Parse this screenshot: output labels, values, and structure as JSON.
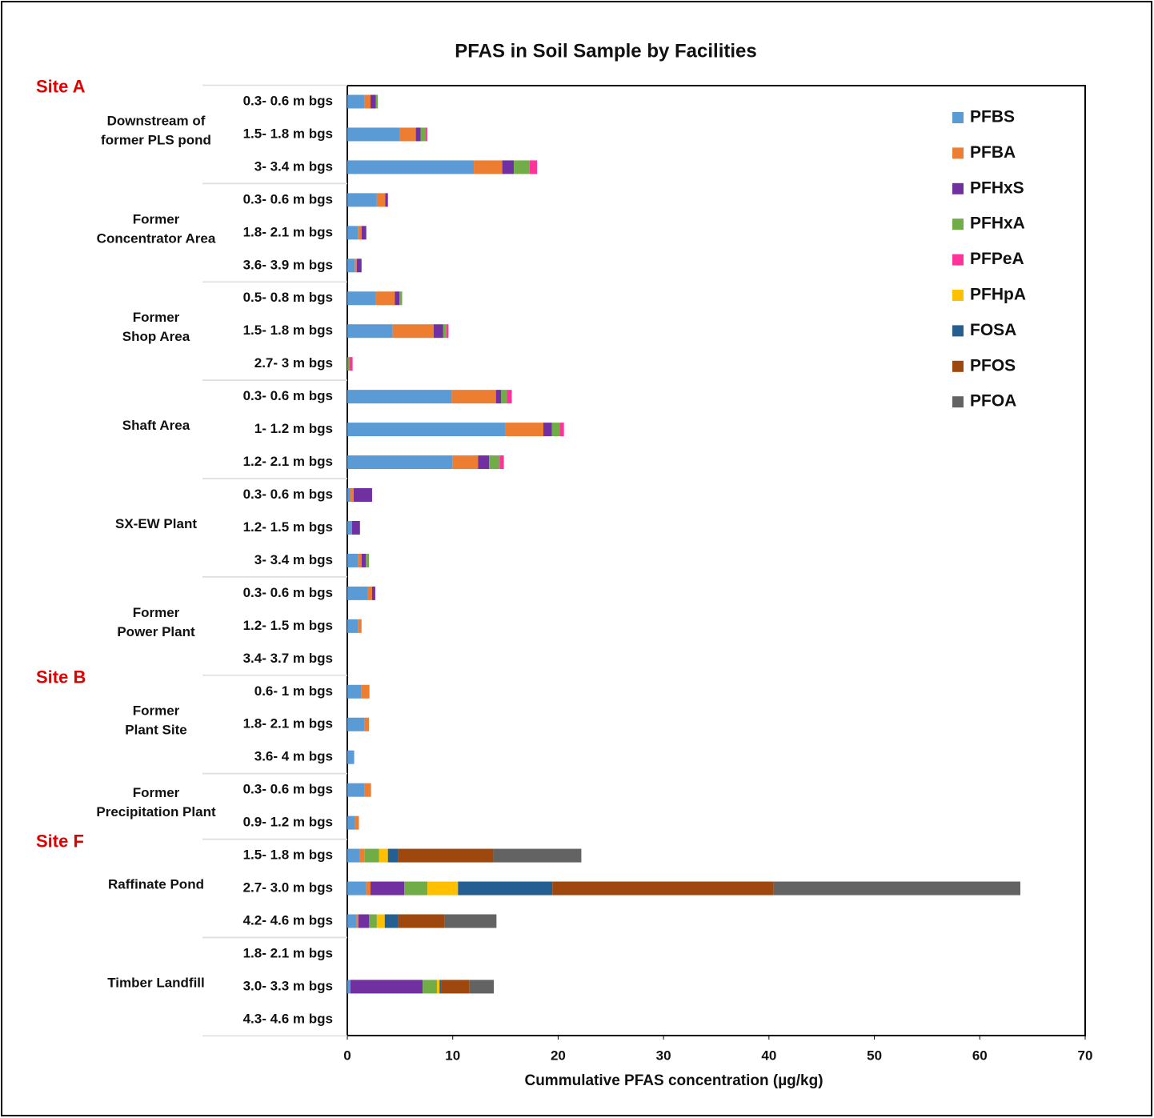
{
  "chart_data": {
    "type": "bar",
    "orientation": "horizontal",
    "stacked": true,
    "title": "PFAS in Soil Sample by Facilities",
    "x_label": "Cummulative PFAS concentration (µg/kg)",
    "xlim": [
      0,
      70
    ],
    "xticks": [
      0,
      10,
      20,
      30,
      40,
      50,
      60,
      70
    ],
    "legend": "top-right",
    "sites": [
      {
        "name": "Site A",
        "groups": [
          {
            "label": [
              "Downstream of",
              "former PLS pond"
            ],
            "categories": [
              "0.3- 0.6 m bgs",
              "1.5- 1.8 m bgs",
              "3- 3.4 m bgs"
            ]
          },
          {
            "label": [
              "Former",
              "Concentrator Area"
            ],
            "categories": [
              "0.3- 0.6 m bgs",
              "1.8- 2.1 m bgs",
              "3.6- 3.9 m bgs"
            ]
          },
          {
            "label": [
              "Former",
              "Shop Area"
            ],
            "categories": [
              "0.5- 0.8 m bgs",
              "1.5- 1.8 m bgs",
              "2.7- 3 m bgs"
            ]
          },
          {
            "label": [
              "Shaft Area"
            ],
            "categories": [
              "0.3- 0.6 m bgs",
              "1- 1.2 m bgs",
              "1.2- 2.1 m bgs"
            ]
          },
          {
            "label": [
              "SX-EW Plant"
            ],
            "categories": [
              "0.3- 0.6 m bgs",
              "1.2- 1.5 m bgs",
              "3- 3.4 m bgs"
            ]
          },
          {
            "label": [
              "Former",
              "Power Plant"
            ],
            "categories": [
              "0.3- 0.6 m bgs",
              "1.2- 1.5 m bgs",
              "3.4- 3.7 m bgs"
            ]
          }
        ]
      },
      {
        "name": "Site B",
        "groups": [
          {
            "label": [
              "Former",
              "Plant Site"
            ],
            "categories": [
              "0.6- 1 m bgs",
              "1.8- 2.1 m bgs",
              "3.6- 4 m bgs"
            ]
          },
          {
            "label": [
              "Former",
              "Precipitation Plant"
            ],
            "categories": [
              "0.3- 0.6 m bgs",
              "0.9- 1.2 m bgs"
            ]
          }
        ]
      },
      {
        "name": "Site F",
        "groups": [
          {
            "label": [
              "Raffinate Pond"
            ],
            "categories": [
              "1.5- 1.8 m bgs",
              "2.7- 3.0 m bgs",
              "4.2- 4.6 m bgs"
            ]
          },
          {
            "label": [
              "Timber Landfill"
            ],
            "categories": [
              "1.8- 2.1 m bgs",
              "3.0- 3.3 m bgs",
              "4.3- 4.6 m bgs"
            ]
          }
        ]
      }
    ],
    "series": [
      {
        "name": "PFBS",
        "color": "#5b9bd5",
        "values": [
          1.6,
          5.0,
          12.0,
          2.8,
          1.0,
          0.7,
          2.7,
          4.3,
          0,
          9.9,
          15.0,
          10.0,
          0.3,
          0.45,
          1.05,
          1.9,
          1.0,
          0,
          1.35,
          1.65,
          0.65,
          1.65,
          0.75,
          1.2,
          1.75,
          0.9,
          0,
          0.3,
          0
        ]
      },
      {
        "name": "PFBA",
        "color": "#ed7d31",
        "values": [
          0.6,
          1.5,
          2.7,
          0.8,
          0.35,
          0.2,
          1.8,
          3.9,
          0,
          4.2,
          3.6,
          2.4,
          0.3,
          0,
          0.3,
          0.45,
          0.35,
          0,
          0.75,
          0.4,
          0,
          0.6,
          0.35,
          0.45,
          0.45,
          0.15,
          0,
          0,
          0
        ]
      },
      {
        "name": "PFHxS",
        "color": "#7030a0",
        "values": [
          0.5,
          0.45,
          1.1,
          0.25,
          0.45,
          0.45,
          0.45,
          0.9,
          0,
          0.5,
          0.8,
          1.05,
          1.75,
          0.75,
          0.4,
          0.3,
          0,
          0,
          0,
          0,
          0,
          0,
          0,
          0,
          3.2,
          1.0,
          0,
          6.85,
          0
        ]
      },
      {
        "name": "PFHxA",
        "color": "#70ad47",
        "values": [
          0.2,
          0.5,
          1.5,
          0,
          0,
          0,
          0.25,
          0.3,
          0.2,
          0.55,
          0.75,
          1.0,
          0,
          0,
          0.3,
          0,
          0,
          0,
          0,
          0,
          0,
          0,
          0,
          1.35,
          2.2,
          0.75,
          0,
          1.35,
          0
        ]
      },
      {
        "name": "PFPeA",
        "color": "#ff3399",
        "values": [
          0,
          0.15,
          0.7,
          0,
          0,
          0,
          0,
          0.2,
          0.3,
          0.45,
          0.4,
          0.4,
          0,
          0,
          0,
          0,
          0,
          0,
          0,
          0,
          0,
          0,
          0,
          0,
          0,
          0,
          0,
          0,
          0
        ]
      },
      {
        "name": "PFHpA",
        "color": "#ffc000",
        "values": [
          0,
          0,
          0,
          0,
          0,
          0,
          0,
          0,
          0,
          0,
          0,
          0,
          0,
          0,
          0,
          0,
          0,
          0,
          0,
          0,
          0,
          0,
          0,
          0.85,
          2.9,
          0.75,
          0,
          0.25,
          0
        ]
      },
      {
        "name": "FOSA",
        "color": "#255e91",
        "values": [
          0,
          0,
          0,
          0,
          0,
          0,
          0,
          0,
          0,
          0,
          0,
          0,
          0,
          0,
          0,
          0,
          0,
          0,
          0,
          0,
          0,
          0,
          0,
          1.0,
          8.95,
          1.3,
          0,
          0.2,
          0
        ]
      },
      {
        "name": "PFOS",
        "color": "#9e480e",
        "values": [
          0,
          0,
          0,
          0,
          0,
          0,
          0,
          0,
          0,
          0,
          0,
          0,
          0,
          0,
          0,
          0,
          0,
          0,
          0,
          0,
          0,
          0,
          0,
          9.0,
          21.0,
          4.4,
          0,
          2.65,
          0
        ]
      },
      {
        "name": "PFOA",
        "color": "#636363",
        "values": [
          0,
          0,
          0,
          0,
          0,
          0,
          0,
          0,
          0,
          0,
          0,
          0,
          0,
          0,
          0,
          0,
          0,
          0,
          0,
          0,
          0,
          0,
          0,
          8.35,
          23.4,
          4.9,
          0,
          2.3,
          0
        ]
      }
    ]
  }
}
